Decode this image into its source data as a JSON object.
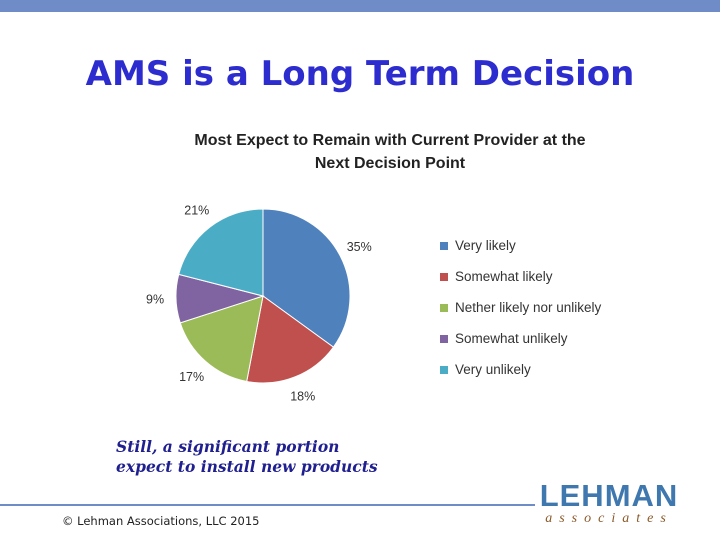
{
  "slide": {
    "title": "AMS is a Long Term Decision",
    "caption_line1": "Still, a significant portion",
    "caption_line2": "expect to install new products",
    "copyright": "© Lehman Associations, LLC 2015",
    "logo_top": "LEHMAN",
    "logo_bottom": "associates"
  },
  "colors": {
    "title": "#2c2ccf",
    "caption": "#1f1f8f",
    "bar": "#6f8cc8"
  },
  "chart_data": {
    "type": "pie",
    "title_line1": "Most Expect to Remain with Current Provider at the",
    "title_line2": "Next Decision Point",
    "legend_position": "right",
    "categories": [
      "Very likely",
      "Somewhat likely",
      "Nether likely nor unlikely",
      "Somewhat unlikely",
      "Very unlikely"
    ],
    "values": [
      35,
      18,
      17,
      9,
      21
    ],
    "labels": [
      "35%",
      "18%",
      "17%",
      "9%",
      "21%"
    ],
    "colors": [
      "#4f81bd",
      "#c0504d",
      "#9bbb59",
      "#8064a2",
      "#4bacc6"
    ]
  }
}
